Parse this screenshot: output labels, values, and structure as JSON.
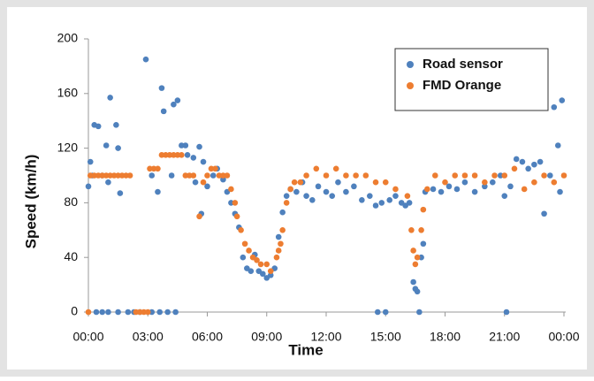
{
  "chart_data": {
    "type": "scatter",
    "x_label": "Time",
    "y_label": "Speed (km/h)",
    "xlim": [
      0,
      24
    ],
    "ylim": [
      0,
      200
    ],
    "xticks": [
      {
        "value": 0,
        "label": "00:00"
      },
      {
        "value": 3,
        "label": "03:00"
      },
      {
        "value": 6,
        "label": "06:00"
      },
      {
        "value": 9,
        "label": "09:00"
      },
      {
        "value": 12,
        "label": "12:00"
      },
      {
        "value": 15,
        "label": "15:00"
      },
      {
        "value": 18,
        "label": "18:00"
      },
      {
        "value": 21,
        "label": "21:00"
      },
      {
        "value": 24,
        "label": "00:00"
      }
    ],
    "yticks": [
      0,
      40,
      80,
      120,
      160,
      200
    ],
    "grid": false,
    "legend": "upper right",
    "series": [
      {
        "name": "Road sensor",
        "color": "#4f81bd",
        "x": [
          0.0,
          0.1,
          0.2,
          0.3,
          0.5,
          0.7,
          0.9,
          1.0,
          1.1,
          1.4,
          1.5,
          1.6,
          0.4,
          0.7,
          1.0,
          1.5,
          2.0,
          2.3,
          2.6,
          3.2,
          3.6,
          4.0,
          4.4,
          2.9,
          3.2,
          3.5,
          3.7,
          3.8,
          4.2,
          4.3,
          4.5,
          4.7,
          4.9,
          5.0,
          5.3,
          5.4,
          5.6,
          5.7,
          5.8,
          6.0,
          6.3,
          6.5,
          6.8,
          7.0,
          7.2,
          7.4,
          7.6,
          7.8,
          8.0,
          8.2,
          8.4,
          8.6,
          8.8,
          9.0,
          9.2,
          9.4,
          9.6,
          9.8,
          10.0,
          10.2,
          10.5,
          10.8,
          11.0,
          11.3,
          11.6,
          12.0,
          12.3,
          12.6,
          13.0,
          13.4,
          13.8,
          14.2,
          14.5,
          14.8,
          15.2,
          15.5,
          15.8,
          16.0,
          16.2,
          16.4,
          16.5,
          16.6,
          16.8,
          16.9,
          16.7,
          14.6,
          15.0,
          17.0,
          17.4,
          17.8,
          18.2,
          18.6,
          19.0,
          19.5,
          20.0,
          20.4,
          20.8,
          21.0,
          21.1,
          21.3,
          21.6,
          21.9,
          22.2,
          22.5,
          22.8,
          23.0,
          23.3,
          23.5,
          23.7,
          23.9,
          23.8
        ],
        "values": [
          92,
          110,
          100,
          137,
          136,
          100,
          122,
          95,
          157,
          137,
          120,
          87,
          0,
          0,
          0,
          0,
          0,
          0,
          0,
          0,
          0,
          0,
          0,
          185,
          100,
          88,
          164,
          147,
          100,
          152,
          155,
          122,
          122,
          115,
          113,
          95,
          121,
          72,
          110,
          92,
          100,
          105,
          97,
          88,
          80,
          72,
          62,
          40,
          32,
          30,
          42,
          30,
          28,
          25,
          27,
          32,
          55,
          73,
          85,
          90,
          88,
          95,
          85,
          82,
          92,
          88,
          85,
          95,
          88,
          92,
          82,
          85,
          78,
          80,
          82,
          85,
          80,
          78,
          80,
          22,
          17,
          15,
          40,
          50,
          0,
          0,
          0,
          88,
          90,
          88,
          92,
          90,
          95,
          88,
          92,
          95,
          100,
          85,
          0,
          92,
          112,
          110,
          105,
          108,
          110,
          72,
          100,
          150,
          122,
          155,
          88
        ]
      },
      {
        "name": "FMD Orange",
        "color": "#ed7d31",
        "x": [
          0.0,
          0.1,
          0.3,
          0.5,
          0.7,
          0.9,
          1.1,
          1.3,
          1.5,
          1.7,
          1.9,
          2.1,
          2.4,
          2.6,
          2.8,
          3.0,
          3.1,
          3.3,
          3.5,
          3.7,
          3.9,
          4.1,
          4.3,
          4.5,
          4.7,
          4.9,
          5.1,
          5.3,
          5.6,
          5.8,
          6.0,
          6.2,
          6.4,
          6.6,
          6.8,
          7.0,
          7.2,
          7.4,
          7.5,
          7.7,
          7.9,
          8.1,
          8.3,
          8.5,
          8.7,
          9.0,
          9.2,
          9.5,
          9.6,
          9.7,
          9.8,
          10.0,
          10.2,
          10.4,
          10.7,
          11.0,
          11.5,
          12.0,
          12.5,
          13.0,
          13.5,
          14.0,
          14.5,
          15.0,
          15.5,
          16.1,
          16.3,
          16.4,
          16.5,
          16.6,
          16.8,
          16.9,
          17.1,
          17.5,
          18.0,
          18.5,
          19.0,
          19.5,
          20.0,
          20.5,
          21.0,
          21.5,
          22.0,
          22.5,
          23.0,
          23.5,
          24.0
        ],
        "values": [
          0,
          100,
          100,
          100,
          100,
          100,
          100,
          100,
          100,
          100,
          100,
          100,
          0,
          0,
          0,
          0,
          105,
          105,
          105,
          115,
          115,
          115,
          115,
          115,
          115,
          100,
          100,
          100,
          70,
          95,
          100,
          105,
          105,
          100,
          100,
          100,
          90,
          80,
          70,
          60,
          50,
          45,
          40,
          38,
          35,
          35,
          30,
          40,
          45,
          50,
          60,
          80,
          90,
          95,
          95,
          100,
          105,
          100,
          105,
          100,
          100,
          100,
          95,
          95,
          90,
          85,
          60,
          45,
          35,
          40,
          60,
          75,
          90,
          100,
          95,
          100,
          100,
          100,
          95,
          100,
          100,
          105,
          90,
          95,
          100,
          95,
          100
        ]
      }
    ]
  }
}
